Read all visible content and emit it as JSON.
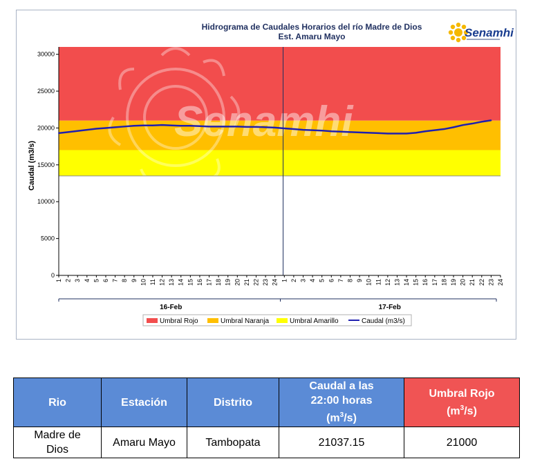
{
  "chart_data": {
    "type": "line",
    "title": "Hidrograma de Caudales Horarios del río Madre de Dios",
    "subtitle": "Est. Amaru Mayo",
    "ylabel": "Caudal  (m3/s)",
    "ylim": [
      0,
      31000
    ],
    "yticks": [
      0,
      5000,
      10000,
      15000,
      20000,
      25000,
      30000
    ],
    "days": [
      "16-Feb",
      "17-Feb"
    ],
    "hour_ticks": [
      "1",
      "2",
      "3",
      "4",
      "5",
      "6",
      "7",
      "8",
      "9",
      "10",
      "11",
      "12",
      "13",
      "14",
      "15",
      "16",
      "17",
      "18",
      "19",
      "20",
      "21",
      "22",
      "23",
      "24",
      "1",
      "2",
      "3",
      "4",
      "5",
      "6",
      "7",
      "8",
      "9",
      "10",
      "11",
      "12",
      "13",
      "14",
      "15",
      "16",
      "17",
      "18",
      "19",
      "20",
      "21",
      "22",
      "23",
      "24"
    ],
    "thresholds": [
      {
        "name": "Umbral Rojo",
        "from": 21000,
        "to": 31000,
        "color": "#f24d4d"
      },
      {
        "name": "Umbral Naranja",
        "from": 17000,
        "to": 21000,
        "color": "#ffbf00"
      },
      {
        "name": "Umbral Amarillo",
        "from": 13500,
        "to": 17000,
        "color": "#ffff00"
      }
    ],
    "series": [
      {
        "name": "Caudal (m3/s)",
        "color": "#1f1fb0",
        "values": [
          19300,
          19450,
          19600,
          19750,
          19900,
          20000,
          20100,
          20200,
          20300,
          20350,
          20350,
          20400,
          20350,
          20300,
          20300,
          20250,
          20200,
          20200,
          20200,
          20200,
          20150,
          20150,
          20100,
          20050,
          19950,
          19850,
          19750,
          19700,
          19650,
          19550,
          19500,
          19450,
          19400,
          19350,
          19300,
          19250,
          19250,
          19250,
          19350,
          19550,
          19700,
          19850,
          20100,
          20400,
          20600,
          20850,
          21037
        ]
      }
    ],
    "legend": "bottom",
    "watermark": "Senamhi"
  },
  "logo": {
    "text": "Senamhi",
    "icon": "sun-logo-icon"
  },
  "table": {
    "headers": {
      "rio": "Rio",
      "estacion": "Estación",
      "distrito": "Distrito",
      "caudal_line1": "Caudal a las",
      "caudal_line2": "22:00 horas",
      "caudal_unit_pre": "(m",
      "caudal_unit_sup": "3",
      "caudal_unit_post": "/s)",
      "umbral_line1": "Umbral Rojo",
      "umbral_unit_pre": "(m",
      "umbral_unit_sup": "3",
      "umbral_unit_post": "/s)"
    },
    "row": {
      "rio_line1": "Madre de",
      "rio_line2": "Dios",
      "estacion": "Amaru Mayo",
      "distrito": "Tambopata",
      "caudal": "21037.15",
      "umbral": "21000"
    },
    "colors": {
      "header_blue": "#5b8bd6",
      "header_red": "#f05454"
    }
  }
}
